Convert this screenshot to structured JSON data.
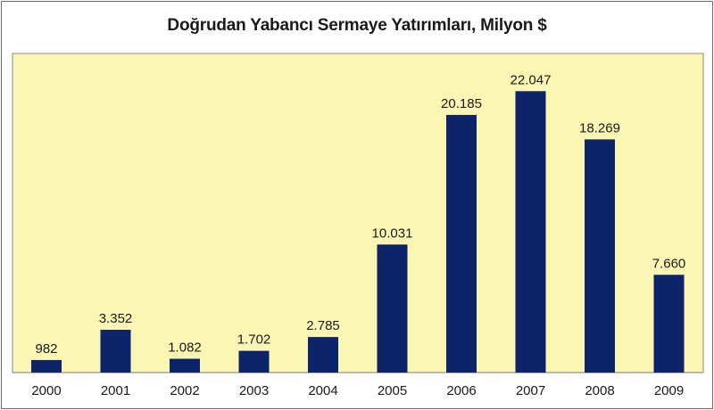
{
  "chart_data": {
    "type": "bar",
    "title": "Doğrudan Yabancı Sermaye Yatırımları, Milyon $",
    "categories": [
      "2000",
      "2001",
      "2002",
      "2003",
      "2004",
      "2005",
      "2006",
      "2007",
      "2008",
      "2009"
    ],
    "values": [
      982,
      3352,
      1082,
      1702,
      2785,
      10031,
      20185,
      22047,
      18269,
      7660
    ],
    "value_labels": [
      "982",
      "3.352",
      "1.082",
      "1.702",
      "2.785",
      "10.031",
      "20.185",
      "22.047",
      "18.269",
      "7.660"
    ],
    "xlabel": "",
    "ylabel": "",
    "ylim": [
      0,
      25000
    ],
    "grid": false,
    "colors": {
      "bar": "#0d2468",
      "plot_bg": "#fbf6b4",
      "axis": "#7a7a7a"
    }
  }
}
